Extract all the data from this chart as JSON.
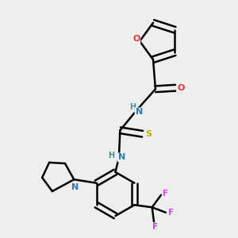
{
  "bg_color": "#eeeeee",
  "atom_colors": {
    "C": "#000000",
    "N": "#2c7bb6",
    "O": "#e63232",
    "S": "#c8a800",
    "F": "#e040fb",
    "H": "#4a9090"
  },
  "line_width": 1.8
}
